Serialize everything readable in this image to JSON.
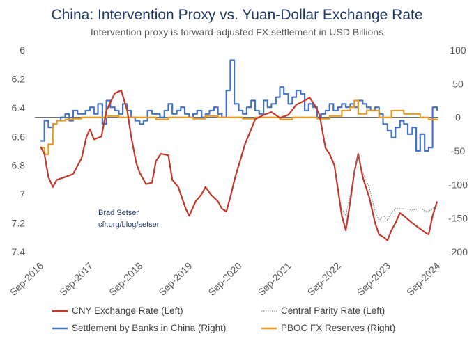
{
  "chart_data": {
    "type": "line",
    "title": "China: Intervention Proxy vs. Yuan-Dollar Exchange Rate",
    "subtitle": "Intervention proxy is forward-adjusted FX settlement in USD Billions",
    "annotation": [
      "Brad Setser",
      "cfr.org/blog/setser"
    ],
    "left_axis": {
      "ticks": [
        "6",
        "6.2",
        "6.4",
        "6.6",
        "6.8",
        "7",
        "7.2",
        "7.4"
      ],
      "ylim": [
        6.0,
        7.4
      ],
      "inverted": true
    },
    "right_axis": {
      "ticks": [
        "100",
        "50",
        "0",
        "-50",
        "-100",
        "-150",
        "-200"
      ],
      "ylim": [
        -200,
        100
      ]
    },
    "x_ticks": [
      "Sep-2016",
      "Sep-2017",
      "Sep-2018",
      "Sep-2019",
      "Sep-2020",
      "Sep-2021",
      "Sep-2022",
      "Sep-2023",
      "Sep-2024"
    ],
    "xlim": [
      2016.67,
      2024.67
    ],
    "series": [
      {
        "name": "CNY Exchange Rate (Left)",
        "axis": "left",
        "color": "#c0392b",
        "x": [
          2016.67,
          2016.75,
          2016.83,
          2016.92,
          2017.0,
          2017.17,
          2017.33,
          2017.5,
          2017.6,
          2017.67,
          2017.75,
          2017.9,
          2018.0,
          2018.17,
          2018.3,
          2018.42,
          2018.5,
          2018.6,
          2018.67,
          2018.8,
          2018.92,
          2019.0,
          2019.1,
          2019.25,
          2019.33,
          2019.45,
          2019.6,
          2019.67,
          2019.8,
          2019.92,
          2020.0,
          2020.1,
          2020.25,
          2020.33,
          2020.42,
          2020.5,
          2020.6,
          2020.67,
          2020.8,
          2020.92,
          2021.0,
          2021.17,
          2021.33,
          2021.5,
          2021.67,
          2021.83,
          2022.0,
          2022.1,
          2022.2,
          2022.3,
          2022.42,
          2022.5,
          2022.6,
          2022.75,
          2022.83,
          2022.92,
          2023.0,
          2023.08,
          2023.17,
          2023.3,
          2023.42,
          2023.5,
          2023.6,
          2023.67,
          2023.75,
          2023.83,
          2023.92,
          2024.0,
          2024.17,
          2024.33,
          2024.45,
          2024.5,
          2024.58,
          2024.67
        ],
        "values": [
          6.67,
          6.72,
          6.88,
          6.95,
          6.9,
          6.88,
          6.86,
          6.75,
          6.6,
          6.55,
          6.62,
          6.6,
          6.42,
          6.3,
          6.28,
          6.42,
          6.6,
          6.78,
          6.85,
          6.93,
          6.92,
          6.77,
          6.72,
          6.73,
          6.9,
          6.95,
          7.1,
          7.15,
          7.05,
          7.0,
          6.95,
          7.0,
          7.05,
          7.1,
          7.12,
          7.02,
          6.88,
          6.8,
          6.65,
          6.55,
          6.48,
          6.45,
          6.43,
          6.47,
          6.45,
          6.38,
          6.35,
          6.33,
          6.38,
          6.45,
          6.68,
          6.72,
          6.8,
          7.15,
          7.25,
          7.05,
          6.85,
          6.72,
          6.88,
          7.02,
          7.2,
          7.28,
          7.3,
          7.32,
          7.25,
          7.2,
          7.13,
          7.15,
          7.2,
          7.24,
          7.27,
          7.28,
          7.15,
          7.05
        ]
      },
      {
        "name": "Central Parity Rate (Left)",
        "axis": "left",
        "color": "#7f7f7f",
        "x": [
          2022.75,
          2022.83,
          2022.92,
          2023.0,
          2023.08,
          2023.17,
          2023.3,
          2023.42,
          2023.5,
          2023.6,
          2023.67,
          2023.75,
          2023.83,
          2023.92,
          2024.0,
          2024.17,
          2024.33,
          2024.45,
          2024.5,
          2024.58,
          2024.67
        ],
        "values": [
          7.1,
          7.15,
          7.0,
          6.85,
          6.72,
          6.85,
          6.95,
          7.12,
          7.18,
          7.15,
          7.18,
          7.13,
          7.1,
          7.1,
          7.1,
          7.11,
          7.1,
          7.12,
          7.12,
          7.1,
          7.08
        ]
      },
      {
        "name": "Settlement by Banks in China (Right)",
        "axis": "right",
        "color": "#4472c4",
        "step": true,
        "x": [
          2016.67,
          2016.75,
          2016.83,
          2016.92,
          2017.0,
          2017.08,
          2017.17,
          2017.25,
          2017.33,
          2017.42,
          2017.5,
          2017.58,
          2017.67,
          2017.75,
          2017.83,
          2017.92,
          2018.0,
          2018.08,
          2018.17,
          2018.25,
          2018.33,
          2018.42,
          2018.5,
          2018.58,
          2018.67,
          2018.75,
          2018.83,
          2018.92,
          2019.0,
          2019.08,
          2019.17,
          2019.25,
          2019.33,
          2019.42,
          2019.5,
          2019.58,
          2019.67,
          2019.75,
          2019.83,
          2019.92,
          2020.0,
          2020.08,
          2020.17,
          2020.25,
          2020.33,
          2020.42,
          2020.5,
          2020.58,
          2020.67,
          2020.75,
          2020.83,
          2020.92,
          2021.0,
          2021.08,
          2021.17,
          2021.25,
          2021.33,
          2021.42,
          2021.5,
          2021.58,
          2021.67,
          2021.75,
          2021.83,
          2021.92,
          2022.0,
          2022.08,
          2022.17,
          2022.25,
          2022.33,
          2022.42,
          2022.5,
          2022.58,
          2022.67,
          2022.75,
          2022.83,
          2022.92,
          2023.0,
          2023.08,
          2023.17,
          2023.25,
          2023.33,
          2023.42,
          2023.5,
          2023.58,
          2023.67,
          2023.75,
          2023.83,
          2023.92,
          2024.0,
          2024.08,
          2024.17,
          2024.25,
          2024.33,
          2024.42,
          2024.5,
          2024.58,
          2024.67
        ],
        "values": [
          -35,
          -5,
          -15,
          -10,
          -5,
          0,
          5,
          -5,
          10,
          5,
          5,
          10,
          15,
          5,
          20,
          -10,
          25,
          15,
          10,
          5,
          20,
          10,
          0,
          -5,
          -10,
          -5,
          10,
          5,
          5,
          0,
          10,
          20,
          5,
          10,
          15,
          5,
          0,
          5,
          10,
          0,
          5,
          10,
          15,
          5,
          0,
          40,
          85,
          20,
          10,
          5,
          15,
          25,
          10,
          5,
          25,
          15,
          20,
          30,
          45,
          35,
          20,
          30,
          40,
          35,
          10,
          20,
          15,
          0,
          5,
          10,
          20,
          10,
          15,
          20,
          15,
          20,
          15,
          25,
          20,
          15,
          10,
          15,
          5,
          -10,
          -20,
          -30,
          -15,
          -5,
          -10,
          -25,
          -15,
          -50,
          -25,
          -50,
          -45,
          15,
          10
        ]
      },
      {
        "name": "PBOC FX Reserves (Right)",
        "axis": "right",
        "color": "#e69c24",
        "step": true,
        "x": [
          2016.67,
          2016.75,
          2016.83,
          2016.92,
          2017.0,
          2017.08,
          2017.17,
          2017.33,
          2017.5,
          2017.67,
          2017.83,
          2018.0,
          2018.25,
          2018.5,
          2018.75,
          2019.0,
          2019.25,
          2019.5,
          2019.75,
          2020.0,
          2020.25,
          2020.5,
          2020.75,
          2021.0,
          2021.25,
          2021.5,
          2021.75,
          2022.0,
          2022.25,
          2022.5,
          2022.75,
          2022.92,
          2023.0,
          2023.08,
          2023.25,
          2023.5,
          2023.75,
          2024.0,
          2024.17,
          2024.33,
          2024.5,
          2024.67
        ],
        "values": [
          -45,
          -55,
          -40,
          -10,
          -5,
          -5,
          -3,
          -2,
          0,
          0,
          0,
          2,
          0,
          0,
          0,
          -3,
          0,
          0,
          -2,
          2,
          0,
          0,
          -2,
          0,
          0,
          -3,
          0,
          0,
          -2,
          2,
          10,
          15,
          25,
          5,
          10,
          0,
          10,
          5,
          5,
          0,
          -3,
          -2
        ]
      }
    ],
    "zero_line_right": 0,
    "legend": {
      "placement": "bottom",
      "items": [
        {
          "label": "CNY Exchange Rate (Left)",
          "color": "#c0392b",
          "style": "solid"
        },
        {
          "label": "Central Parity Rate (Left)",
          "color": "#7f7f7f",
          "style": "dotted"
        },
        {
          "label": "Settlement by Banks in China (Right)",
          "color": "#4472c4",
          "style": "solid"
        },
        {
          "label": "PBOC FX Reserves (Right)",
          "color": "#e69c24",
          "style": "solid"
        }
      ]
    }
  }
}
